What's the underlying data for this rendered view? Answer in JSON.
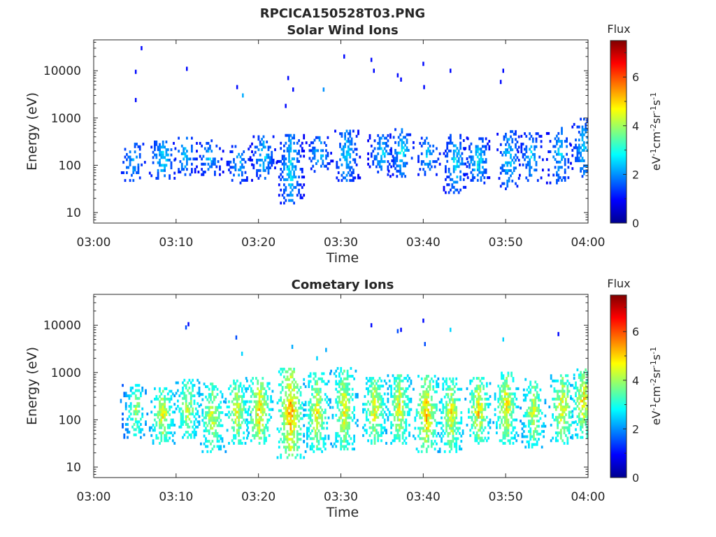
{
  "figure": {
    "filename_title": "RPCICA150528T03.PNG"
  },
  "chart_data": [
    {
      "type": "heatmap",
      "title": "Solar Wind Ions",
      "xlabel": "Time",
      "ylabel": "Energy (eV)",
      "y_scale": "log",
      "xlim": [
        "03:00",
        "04:00"
      ],
      "ylim": [
        6,
        45000
      ],
      "x_ticks": [
        "03:00",
        "03:10",
        "03:20",
        "03:30",
        "03:40",
        "03:50",
        "04:00"
      ],
      "y_ticks": [
        "10",
        "100",
        "1000",
        "10000"
      ],
      "grid": false,
      "colorbar": {
        "label": "Flux",
        "units": "eV-1cm-2sr-1s-1",
        "range": [
          0,
          7.5
        ],
        "ticks": [
          "0",
          "2",
          "4",
          "6"
        ],
        "colormap": "jet"
      },
      "clusters": [
        {
          "t": 4.7,
          "e_lo": 45,
          "e_hi": 300,
          "density": 0.4,
          "f_lo": 1.0,
          "f_hi": 2.6
        },
        {
          "t": 8.3,
          "e_lo": 50,
          "e_hi": 320,
          "density": 0.55,
          "f_lo": 1.0,
          "f_hi": 3.2
        },
        {
          "t": 11.0,
          "e_lo": 60,
          "e_hi": 400,
          "density": 0.45,
          "f_lo": 0.8,
          "f_hi": 3.0
        },
        {
          "t": 14.0,
          "e_lo": 60,
          "e_hi": 330,
          "density": 0.45,
          "f_lo": 0.8,
          "f_hi": 3.0
        },
        {
          "t": 17.5,
          "e_lo": 40,
          "e_hi": 280,
          "density": 0.4,
          "f_lo": 0.8,
          "f_hi": 2.8
        },
        {
          "t": 20.5,
          "e_lo": 50,
          "e_hi": 400,
          "density": 0.6,
          "f_lo": 0.8,
          "f_hi": 3.2
        },
        {
          "t": 23.8,
          "e_lo": 15,
          "e_hi": 450,
          "density": 0.7,
          "f_lo": 0.8,
          "f_hi": 3.5
        },
        {
          "t": 27.3,
          "e_lo": 70,
          "e_hi": 400,
          "density": 0.5,
          "f_lo": 0.8,
          "f_hi": 3.0
        },
        {
          "t": 30.6,
          "e_lo": 45,
          "e_hi": 550,
          "density": 0.55,
          "f_lo": 0.8,
          "f_hi": 3.3
        },
        {
          "t": 34.8,
          "e_lo": 60,
          "e_hi": 450,
          "density": 0.55,
          "f_lo": 0.8,
          "f_hi": 3.2
        },
        {
          "t": 37.3,
          "e_lo": 55,
          "e_hi": 600,
          "density": 0.6,
          "f_lo": 0.8,
          "f_hi": 3.3
        },
        {
          "t": 40.5,
          "e_lo": 60,
          "e_hi": 400,
          "density": 0.5,
          "f_lo": 0.8,
          "f_hi": 3.0
        },
        {
          "t": 43.8,
          "e_lo": 25,
          "e_hi": 450,
          "density": 0.6,
          "f_lo": 0.8,
          "f_hi": 3.3
        },
        {
          "t": 46.5,
          "e_lo": 40,
          "e_hi": 350,
          "density": 0.6,
          "f_lo": 0.8,
          "f_hi": 3.5
        },
        {
          "t": 50.3,
          "e_lo": 30,
          "e_hi": 550,
          "density": 0.55,
          "f_lo": 0.8,
          "f_hi": 3.2
        },
        {
          "t": 53.0,
          "e_lo": 45,
          "e_hi": 450,
          "density": 0.45,
          "f_lo": 0.8,
          "f_hi": 3.0
        },
        {
          "t": 56.5,
          "e_lo": 40,
          "e_hi": 600,
          "density": 0.5,
          "f_lo": 0.8,
          "f_hi": 3.1
        },
        {
          "t": 59.4,
          "e_lo": 55,
          "e_hi": 900,
          "density": 0.55,
          "f_lo": 0.8,
          "f_hi": 3.2
        }
      ],
      "isolated": [
        [
          5.7,
          30000,
          1.0
        ],
        [
          5.0,
          9500,
          1.0
        ],
        [
          5.0,
          2400,
          1.0
        ],
        [
          11.2,
          11000,
          1.0
        ],
        [
          17.3,
          4500,
          1.0
        ],
        [
          18.0,
          3000,
          2.2
        ],
        [
          23.5,
          7000,
          1.0
        ],
        [
          24.1,
          4000,
          1.0
        ],
        [
          23.2,
          1800,
          1.0
        ],
        [
          27.8,
          4000,
          2.0
        ],
        [
          30.3,
          20000,
          1.0
        ],
        [
          33.6,
          17000,
          1.0
        ],
        [
          33.9,
          10000,
          1.0
        ],
        [
          36.8,
          8000,
          1.0
        ],
        [
          37.2,
          6500,
          1.0
        ],
        [
          39.9,
          14000,
          1.0
        ],
        [
          40.0,
          4500,
          1.0
        ],
        [
          43.2,
          10000,
          1.0
        ],
        [
          49.6,
          10000,
          1.0
        ],
        [
          49.3,
          5800,
          1.0
        ]
      ]
    },
    {
      "type": "heatmap",
      "title": "Cometary Ions",
      "xlabel": "Time",
      "ylabel": "Energy (eV)",
      "y_scale": "log",
      "xlim": [
        "03:00",
        "04:00"
      ],
      "ylim": [
        6,
        45000
      ],
      "x_ticks": [
        "03:00",
        "03:10",
        "03:20",
        "03:30",
        "03:40",
        "03:50",
        "04:00"
      ],
      "y_ticks": [
        "10",
        "100",
        "1000",
        "10000"
      ],
      "grid": false,
      "colorbar": {
        "label": "Flux",
        "units": "eV-1cm-2sr-1s-1",
        "range": [
          0,
          7.5
        ],
        "ticks": [
          "0",
          "2",
          "4",
          "6"
        ],
        "colormap": "jet"
      },
      "clusters": [
        {
          "t": 5.0,
          "e_lo": 40,
          "e_hi": 550,
          "density": 0.7,
          "f_lo": 1.5,
          "f_hi": 5.0
        },
        {
          "t": 8.3,
          "e_lo": 30,
          "e_hi": 450,
          "density": 0.85,
          "f_lo": 2.0,
          "f_hi": 5.5
        },
        {
          "t": 11.3,
          "e_lo": 40,
          "e_hi": 700,
          "density": 0.75,
          "f_lo": 2.0,
          "f_hi": 5.0
        },
        {
          "t": 14.3,
          "e_lo": 20,
          "e_hi": 600,
          "density": 0.8,
          "f_lo": 2.0,
          "f_hi": 5.2
        },
        {
          "t": 17.3,
          "e_lo": 30,
          "e_hi": 700,
          "density": 0.8,
          "f_lo": 2.0,
          "f_hi": 5.3
        },
        {
          "t": 20.0,
          "e_lo": 30,
          "e_hi": 800,
          "density": 0.9,
          "f_lo": 2.2,
          "f_hi": 6.0
        },
        {
          "t": 23.8,
          "e_lo": 15,
          "e_hi": 1200,
          "density": 0.95,
          "f_lo": 2.5,
          "f_hi": 6.3
        },
        {
          "t": 27.0,
          "e_lo": 20,
          "e_hi": 900,
          "density": 0.85,
          "f_lo": 2.0,
          "f_hi": 5.5
        },
        {
          "t": 30.3,
          "e_lo": 20,
          "e_hi": 1200,
          "density": 0.85,
          "f_lo": 2.0,
          "f_hi": 5.5
        },
        {
          "t": 34.0,
          "e_lo": 30,
          "e_hi": 800,
          "density": 0.85,
          "f_lo": 2.0,
          "f_hi": 5.5
        },
        {
          "t": 37.0,
          "e_lo": 30,
          "e_hi": 900,
          "density": 0.85,
          "f_lo": 2.0,
          "f_hi": 5.5
        },
        {
          "t": 40.3,
          "e_lo": 20,
          "e_hi": 800,
          "density": 0.9,
          "f_lo": 2.2,
          "f_hi": 6.0
        },
        {
          "t": 43.3,
          "e_lo": 20,
          "e_hi": 700,
          "density": 0.8,
          "f_lo": 2.0,
          "f_hi": 5.5
        },
        {
          "t": 46.6,
          "e_lo": 30,
          "e_hi": 800,
          "density": 0.85,
          "f_lo": 2.0,
          "f_hi": 5.8
        },
        {
          "t": 50.0,
          "e_lo": 30,
          "e_hi": 1000,
          "density": 0.85,
          "f_lo": 2.0,
          "f_hi": 5.8
        },
        {
          "t": 53.3,
          "e_lo": 25,
          "e_hi": 700,
          "density": 0.75,
          "f_lo": 1.8,
          "f_hi": 5.3
        },
        {
          "t": 56.8,
          "e_lo": 30,
          "e_hi": 900,
          "density": 0.85,
          "f_lo": 2.0,
          "f_hi": 5.8
        },
        {
          "t": 59.4,
          "e_lo": 40,
          "e_hi": 1200,
          "density": 0.85,
          "f_lo": 2.0,
          "f_hi": 5.8
        }
      ],
      "isolated": [
        [
          3.2,
          250,
          2.0
        ],
        [
          11.1,
          9000,
          1.5
        ],
        [
          11.4,
          10500,
          1.0
        ],
        [
          17.2,
          5500,
          1.5
        ],
        [
          17.9,
          2500,
          2.5
        ],
        [
          24.0,
          3500,
          2.2
        ],
        [
          27.0,
          2000,
          2.5
        ],
        [
          28.1,
          3000,
          2.2
        ],
        [
          33.6,
          10000,
          1.0
        ],
        [
          36.8,
          7500,
          1.5
        ],
        [
          37.2,
          8000,
          1.0
        ],
        [
          39.9,
          12500,
          1.0
        ],
        [
          40.1,
          4000,
          1.5
        ],
        [
          43.2,
          8000,
          2.5
        ],
        [
          49.6,
          5000,
          2.5
        ],
        [
          56.3,
          6500,
          1.0
        ]
      ]
    }
  ]
}
